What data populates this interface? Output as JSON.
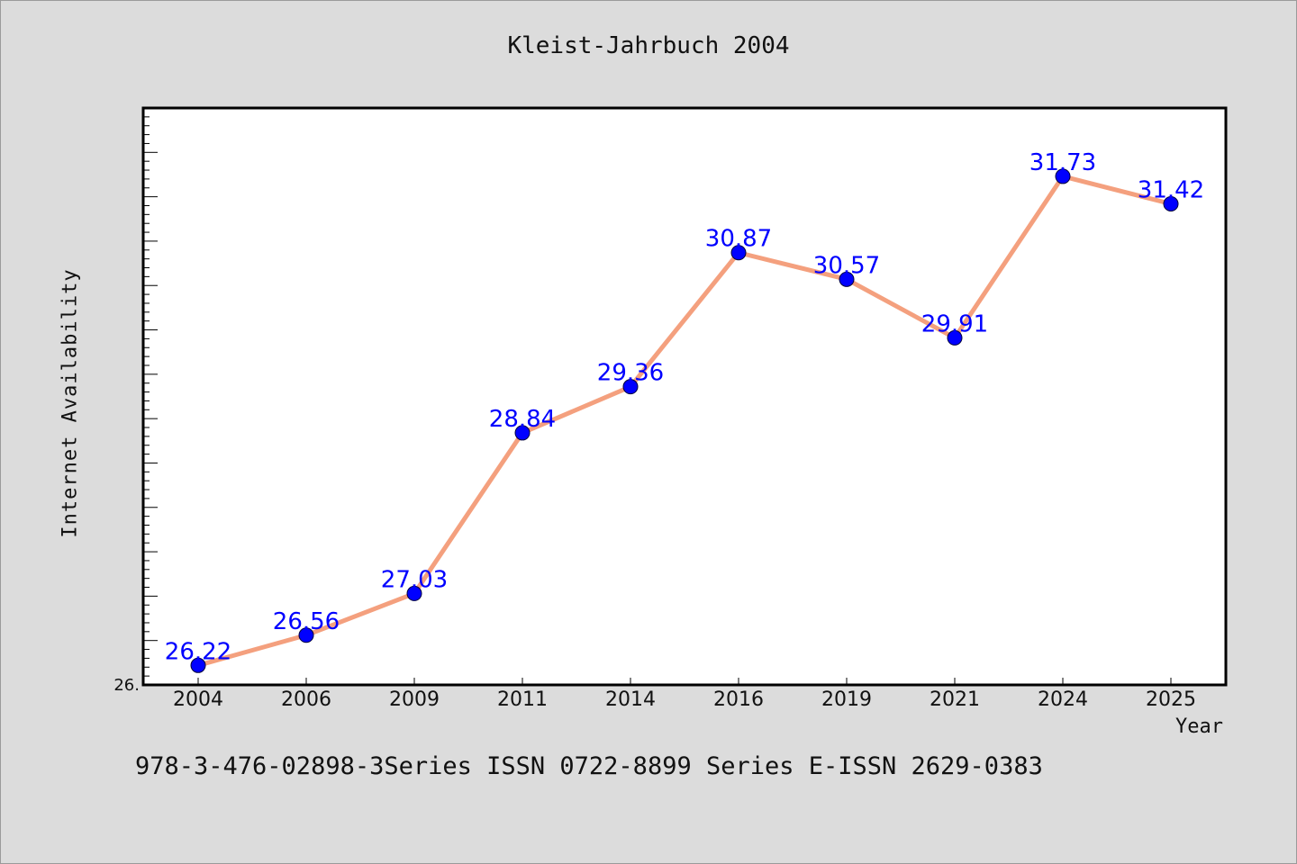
{
  "title": "Kleist-Jahrbuch 2004",
  "footer": "978-3-476-02898-3Series ISSN 0722-8899 Series E-ISSN 2629-0383",
  "colors": {
    "background": "#dcdcdc",
    "plot_background": "#ffffff",
    "line": "#f4a07e",
    "marker": "#0000ff",
    "data_label": "#0000ff"
  },
  "chart_data": {
    "type": "line",
    "title": "Kleist-Jahrbuch 2004",
    "xlabel": "Year",
    "ylabel": "Internet Availability",
    "categories": [
      "2004",
      "2006",
      "2009",
      "2011",
      "2014",
      "2016",
      "2019",
      "2021",
      "2024",
      "2025"
    ],
    "series": [
      {
        "values": [
          26.22,
          26.56,
          27.03,
          28.84,
          29.36,
          30.87,
          30.57,
          29.91,
          31.73,
          31.42
        ]
      }
    ],
    "y_tick_label": "26.",
    "ylim": [
      26.0,
      32.5
    ],
    "grid": false,
    "legend": "none"
  }
}
